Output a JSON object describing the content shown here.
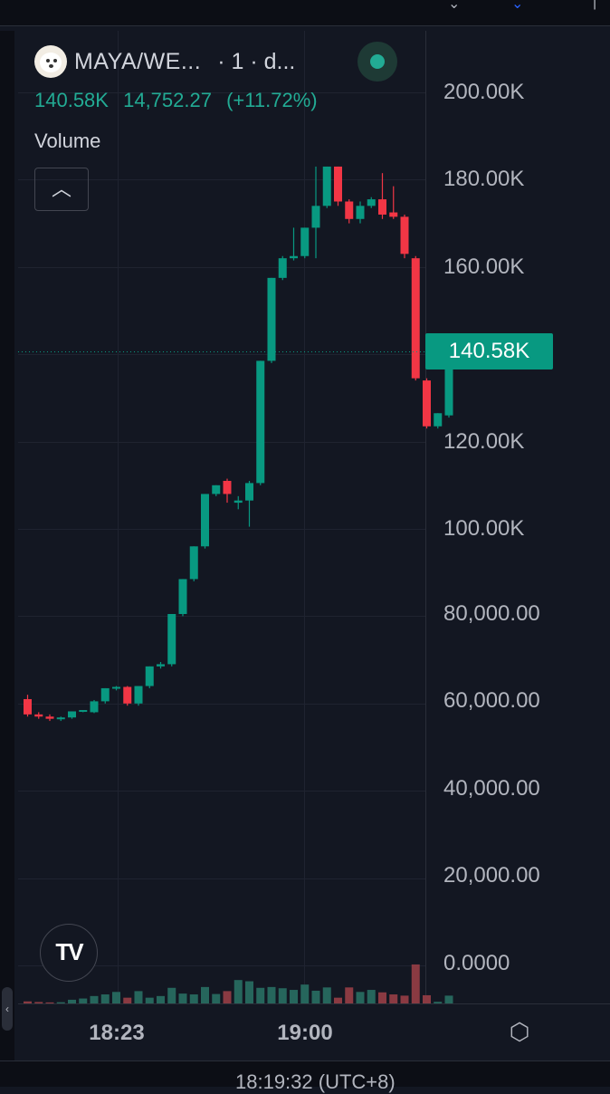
{
  "legend": {
    "symbol": "MAYA/WE...",
    "interval": "· 1 · d...",
    "last_value": "140.58K",
    "change_abs": "14,752.27",
    "change_pct": "(+11.72%)",
    "volume_label": "Volume"
  },
  "colors": {
    "up": "#089981",
    "down": "#f23645",
    "vol_up": "#26665c",
    "vol_down": "#8a3a42",
    "background": "#131722"
  },
  "price_axis": {
    "labels": [
      "200.00K",
      "180.00K",
      "160.00K",
      "140.00K",
      "120.00K",
      "100.00K",
      "80,000.00",
      "60,000.00",
      "40,000.00",
      "20,000.00",
      "0.0000"
    ],
    "last_price_label": "140.58K"
  },
  "time_axis": {
    "labels": [
      "18:23",
      "19:00"
    ]
  },
  "bottom_bar": {
    "text": "18:19:32 (UTC+8)"
  },
  "icons": [
    "chevron-up-icon",
    "settings-icon",
    "tradingview-logo",
    "status-dot-icon"
  ],
  "chart_data": {
    "type": "candlestick",
    "ylim": [
      0,
      200000
    ],
    "last_price": 140580,
    "candles": [
      {
        "o": 61000,
        "h": 62000,
        "l": 57000,
        "c": 57500
      },
      {
        "o": 57500,
        "h": 58000,
        "l": 56500,
        "c": 57000
      },
      {
        "o": 57000,
        "h": 57500,
        "l": 56000,
        "c": 56500
      },
      {
        "o": 56500,
        "h": 57000,
        "l": 56000,
        "c": 56800
      },
      {
        "o": 56800,
        "h": 58200,
        "l": 56500,
        "c": 58200
      },
      {
        "o": 58200,
        "h": 58500,
        "l": 58000,
        "c": 58500
      },
      {
        "o": 58000,
        "h": 60800,
        "l": 57800,
        "c": 60500
      },
      {
        "o": 60500,
        "h": 63500,
        "l": 60000,
        "c": 63500
      },
      {
        "o": 63500,
        "h": 64000,
        "l": 63000,
        "c": 63800
      },
      {
        "o": 63800,
        "h": 64000,
        "l": 59500,
        "c": 60000
      },
      {
        "o": 60000,
        "h": 64000,
        "l": 59500,
        "c": 64000
      },
      {
        "o": 64000,
        "h": 68500,
        "l": 63500,
        "c": 68500
      },
      {
        "o": 68500,
        "h": 69500,
        "l": 68000,
        "c": 69000
      },
      {
        "o": 69000,
        "h": 80500,
        "l": 68500,
        "c": 80500
      },
      {
        "o": 80500,
        "h": 88500,
        "l": 80000,
        "c": 88500
      },
      {
        "o": 88500,
        "h": 96000,
        "l": 88000,
        "c": 96000
      },
      {
        "o": 96000,
        "h": 108000,
        "l": 95500,
        "c": 108000
      },
      {
        "o": 108000,
        "h": 110000,
        "l": 107500,
        "c": 110000
      },
      {
        "o": 111000,
        "h": 111500,
        "l": 106000,
        "c": 108000
      },
      {
        "o": 106000,
        "h": 107500,
        "l": 104500,
        "c": 106500
      },
      {
        "o": 106500,
        "h": 111000,
        "l": 100500,
        "c": 110500
      },
      {
        "o": 110500,
        "h": 138500,
        "l": 110000,
        "c": 138500
      },
      {
        "o": 138500,
        "h": 157500,
        "l": 138000,
        "c": 157500
      },
      {
        "o": 157500,
        "h": 162500,
        "l": 157000,
        "c": 162000
      },
      {
        "o": 162000,
        "h": 169000,
        "l": 161500,
        "c": 162500
      },
      {
        "o": 162500,
        "h": 169000,
        "l": 162000,
        "c": 169000
      },
      {
        "o": 169000,
        "h": 183000,
        "l": 162000,
        "c": 174000
      },
      {
        "o": 174000,
        "h": 183000,
        "l": 173500,
        "c": 183000
      },
      {
        "o": 183000,
        "h": 183000,
        "l": 174000,
        "c": 175000
      },
      {
        "o": 175000,
        "h": 175500,
        "l": 170000,
        "c": 171000
      },
      {
        "o": 171000,
        "h": 175000,
        "l": 170000,
        "c": 174000
      },
      {
        "o": 174000,
        "h": 176000,
        "l": 173500,
        "c": 175500
      },
      {
        "o": 175500,
        "h": 181500,
        "l": 171000,
        "c": 172000
      },
      {
        "o": 172500,
        "h": 178500,
        "l": 171000,
        "c": 171500
      },
      {
        "o": 171500,
        "h": 172000,
        "l": 162000,
        "c": 163000
      },
      {
        "o": 162000,
        "h": 162500,
        "l": 134000,
        "c": 134500
      },
      {
        "o": 134000,
        "h": 134500,
        "l": 123000,
        "c": 123500
      },
      {
        "o": 123500,
        "h": 126500,
        "l": 123000,
        "c": 126500
      },
      {
        "o": 126000,
        "h": 140580,
        "l": 125500,
        "c": 140580
      }
    ],
    "volume": {
      "ylim": [
        0,
        60000
      ],
      "values": [
        500,
        350,
        250,
        300,
        900,
        1200,
        1800,
        2200,
        2800,
        1400,
        3000,
        1400,
        1800,
        3800,
        2400,
        2200,
        4000,
        2300,
        3000,
        5700,
        5400,
        3800,
        4000,
        3700,
        3300,
        4600,
        3100,
        3900,
        1400,
        3900,
        2800,
        3300,
        2700,
        2200,
        1900,
        9500,
        2000,
        400,
        1900
      ]
    }
  }
}
